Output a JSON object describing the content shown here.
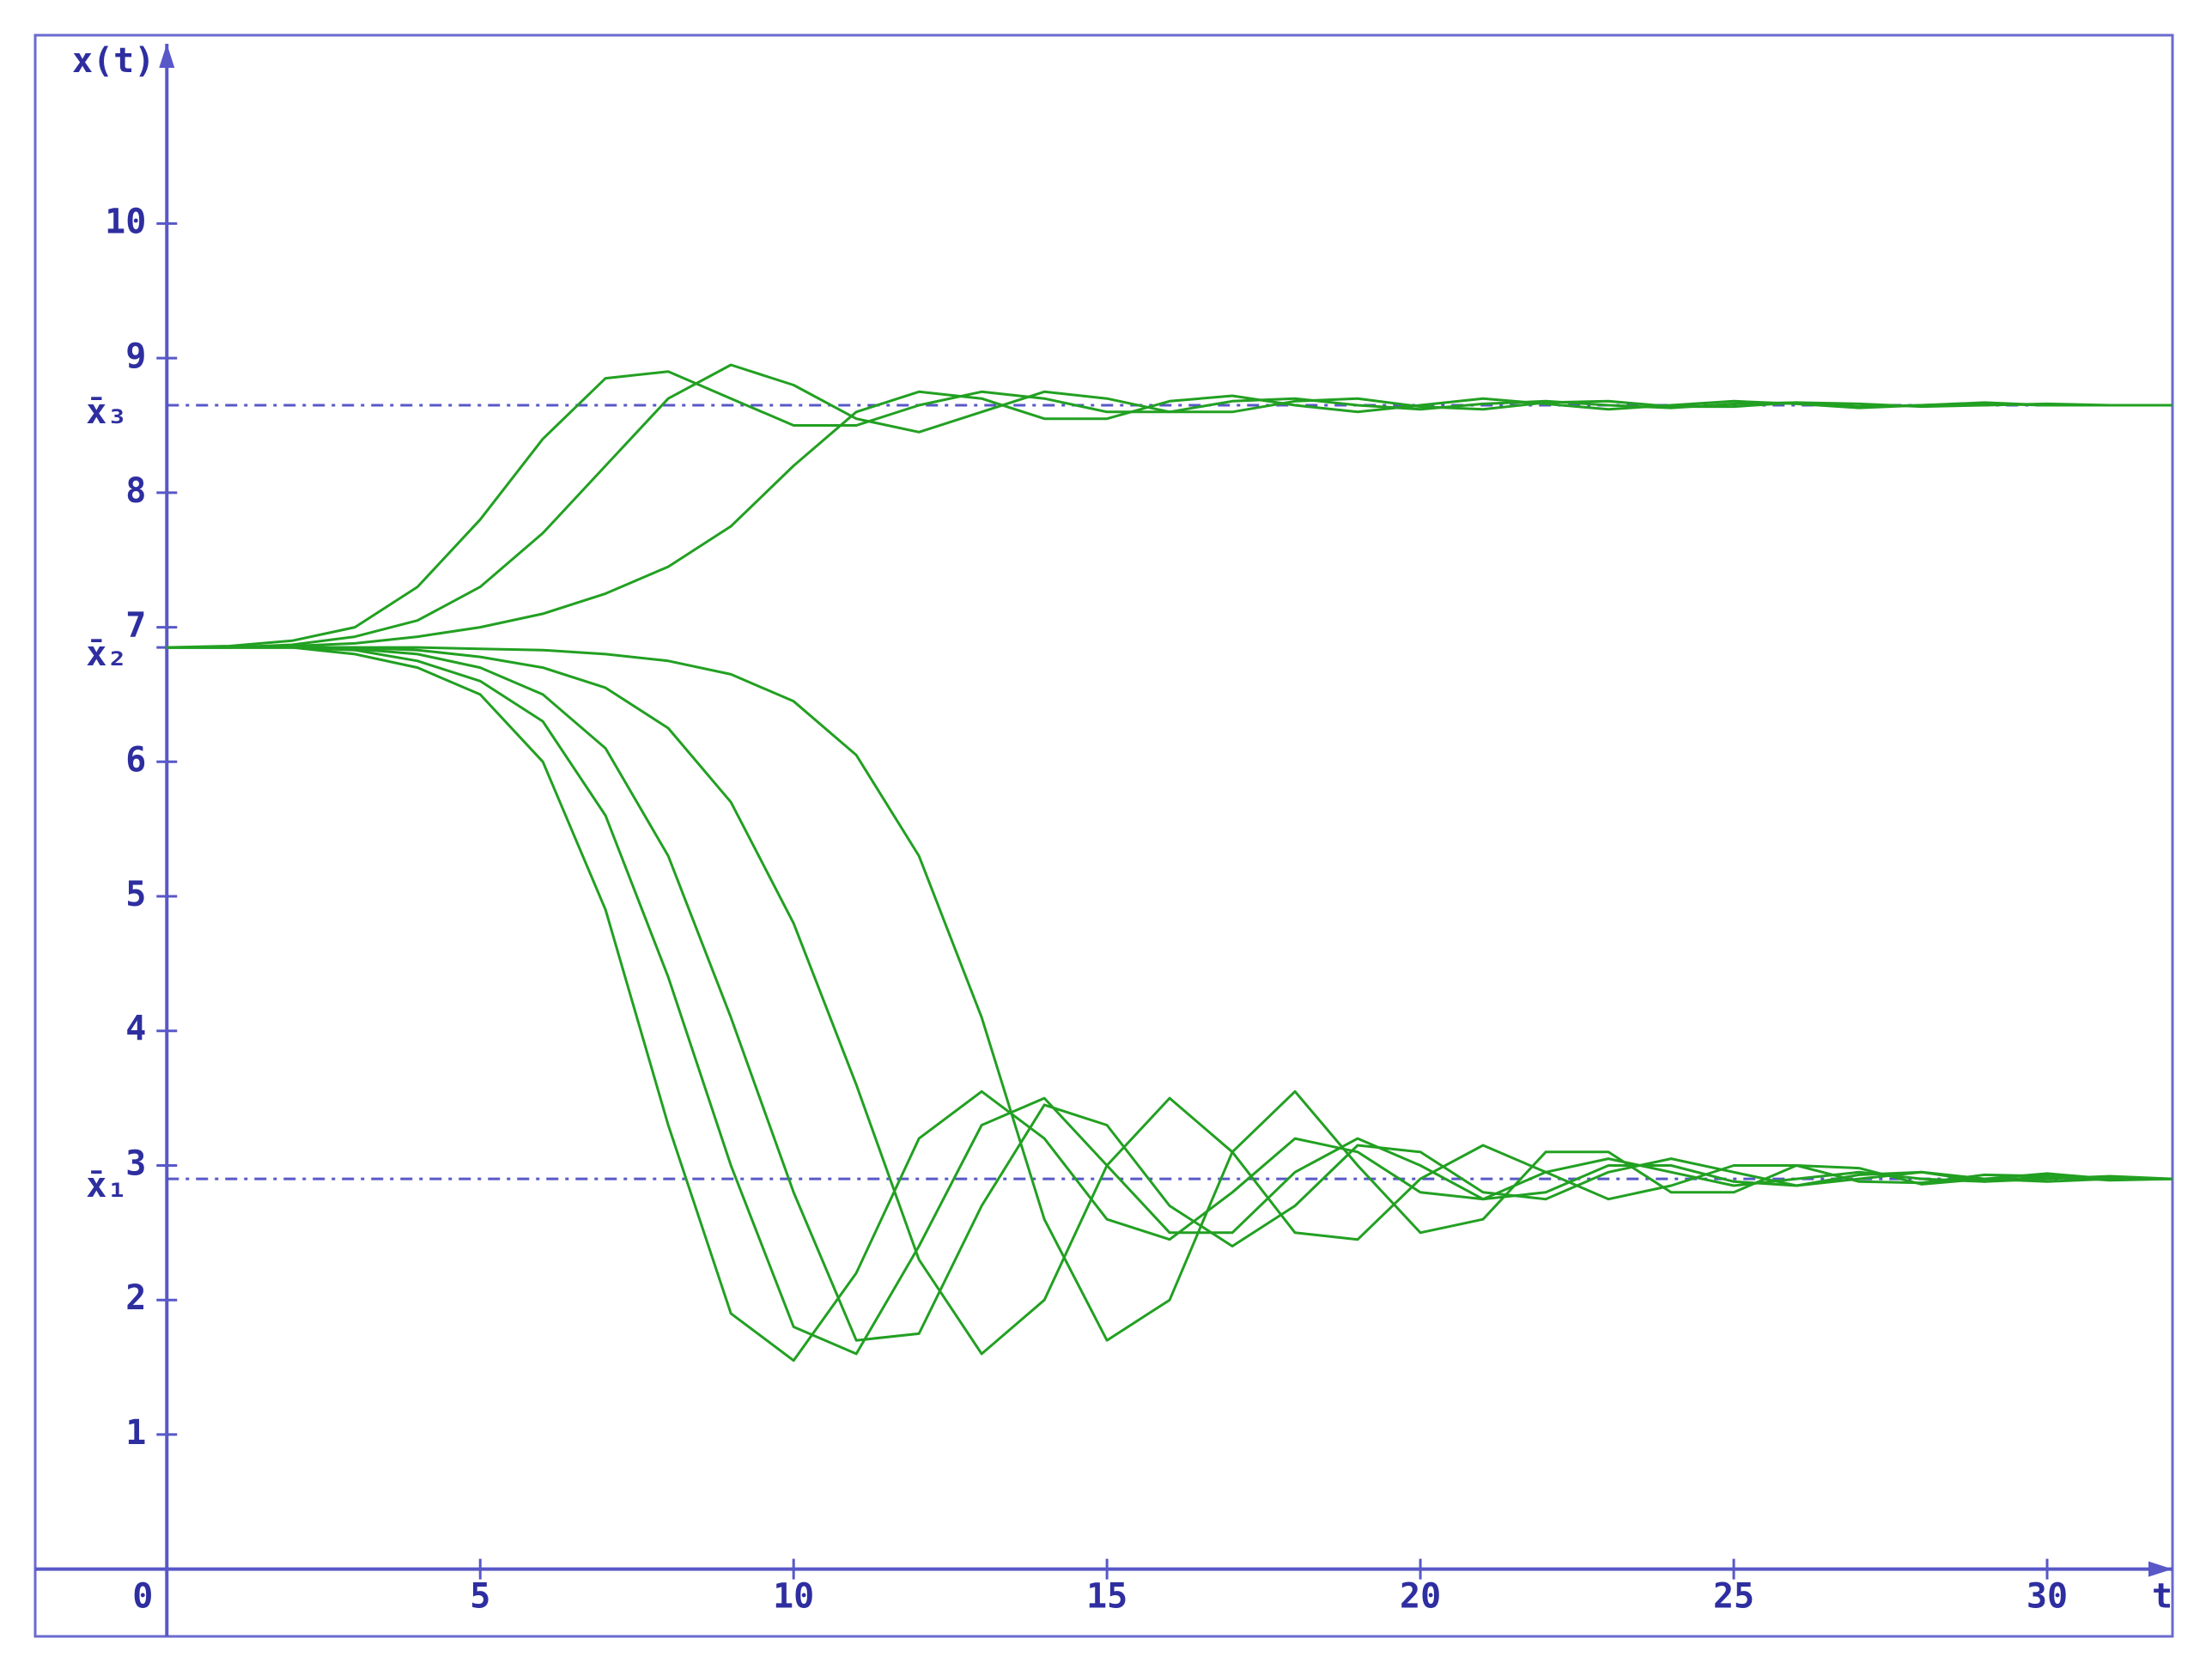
{
  "chart_data": {
    "type": "line",
    "y_label": "x(t)",
    "x_label": "t",
    "x": [
      0,
      1,
      2,
      3,
      4,
      5,
      6,
      7,
      8,
      9,
      10,
      11,
      12,
      13,
      14,
      15,
      16,
      17,
      18,
      19,
      20,
      21,
      22,
      23,
      24,
      25,
      26,
      27,
      28,
      29,
      30,
      31,
      32
    ],
    "series": [
      {
        "color": "#22a022",
        "values": [
          6.85,
          6.85,
          6.85,
          6.8,
          6.7,
          6.5,
          6.0,
          4.9,
          3.3,
          1.9,
          1.55,
          2.2,
          3.2,
          3.55,
          3.2,
          2.6,
          2.45,
          2.8,
          3.2,
          3.1,
          2.8,
          2.75,
          2.95,
          3.05,
          2.95,
          2.85,
          2.9,
          2.95,
          2.9,
          2.88,
          2.92,
          2.9,
          2.9
        ]
      },
      {
        "color": "#22a022",
        "values": [
          6.85,
          6.85,
          6.85,
          6.83,
          6.75,
          6.6,
          6.3,
          5.6,
          4.4,
          3.0,
          1.8,
          1.6,
          2.4,
          3.3,
          3.5,
          3.0,
          2.5,
          2.5,
          2.95,
          3.2,
          3.0,
          2.75,
          2.8,
          3.0,
          3.0,
          2.88,
          2.85,
          2.93,
          2.95,
          2.88,
          2.9,
          2.92,
          2.9
        ]
      },
      {
        "color": "#22a022",
        "values": [
          6.85,
          6.85,
          6.85,
          6.84,
          6.8,
          6.7,
          6.5,
          6.1,
          5.3,
          4.1,
          2.8,
          1.7,
          1.75,
          2.7,
          3.45,
          3.3,
          2.7,
          2.4,
          2.7,
          3.15,
          3.1,
          2.8,
          2.75,
          2.95,
          3.05,
          2.95,
          2.85,
          2.9,
          2.95,
          2.9,
          2.88,
          2.9,
          2.9
        ]
      },
      {
        "color": "#22a022",
        "values": [
          6.85,
          6.85,
          6.85,
          6.85,
          6.83,
          6.78,
          6.7,
          6.55,
          6.25,
          5.7,
          4.8,
          3.6,
          2.3,
          1.6,
          2.0,
          3.0,
          3.5,
          3.1,
          2.5,
          2.45,
          2.9,
          3.15,
          2.95,
          2.75,
          2.85,
          3.0,
          3.0,
          2.88,
          2.87,
          2.93,
          2.92,
          2.89,
          2.9
        ]
      },
      {
        "color": "#22a022",
        "values": [
          6.85,
          6.85,
          6.85,
          6.85,
          6.85,
          6.84,
          6.83,
          6.8,
          6.75,
          6.65,
          6.45,
          6.05,
          5.3,
          4.1,
          2.6,
          1.7,
          2.0,
          3.1,
          3.55,
          3.0,
          2.5,
          2.6,
          3.1,
          3.1,
          2.8,
          2.8,
          3.0,
          2.98,
          2.86,
          2.9,
          2.94,
          2.9,
          2.9
        ]
      },
      {
        "color": "#22a022",
        "values": [
          6.85,
          6.86,
          6.9,
          7.0,
          7.3,
          7.8,
          8.4,
          8.85,
          8.9,
          8.7,
          8.5,
          8.5,
          8.65,
          8.75,
          8.7,
          8.6,
          8.6,
          8.68,
          8.7,
          8.65,
          8.62,
          8.66,
          8.68,
          8.65,
          8.63,
          8.66,
          8.67,
          8.64,
          8.65,
          8.66,
          8.65,
          8.65,
          8.65
        ]
      },
      {
        "color": "#22a022",
        "values": [
          6.85,
          6.85,
          6.87,
          6.93,
          7.05,
          7.3,
          7.7,
          8.2,
          8.7,
          8.95,
          8.8,
          8.55,
          8.45,
          8.6,
          8.75,
          8.7,
          8.6,
          8.6,
          8.68,
          8.7,
          8.64,
          8.62,
          8.67,
          8.68,
          8.64,
          8.64,
          8.67,
          8.66,
          8.64,
          8.65,
          8.66,
          8.65,
          8.65
        ]
      },
      {
        "color": "#22a022",
        "values": [
          6.85,
          6.85,
          6.86,
          6.88,
          6.93,
          7.0,
          7.1,
          7.25,
          7.45,
          7.75,
          8.2,
          8.6,
          8.75,
          8.7,
          8.55,
          8.55,
          8.68,
          8.72,
          8.65,
          8.6,
          8.65,
          8.7,
          8.66,
          8.62,
          8.65,
          8.68,
          8.66,
          8.63,
          8.65,
          8.67,
          8.65,
          8.65,
          8.65
        ]
      }
    ],
    "reference_lines": [
      {
        "label": "x̄₁",
        "value": 2.9,
        "dashed": true
      },
      {
        "label": "x̄₂",
        "value": 6.85,
        "dashed": false
      },
      {
        "label": "x̄₃",
        "value": 8.65,
        "dashed": true
      }
    ],
    "xlim": [
      -2.1,
      32
    ],
    "ylim": [
      -0.5,
      11.4
    ],
    "xticks": [
      0,
      5,
      10,
      15,
      20,
      25,
      30
    ],
    "yticks": [
      1,
      2,
      3,
      4,
      5,
      6,
      7,
      8,
      9,
      10
    ],
    "axis_color": "#5858c8"
  }
}
